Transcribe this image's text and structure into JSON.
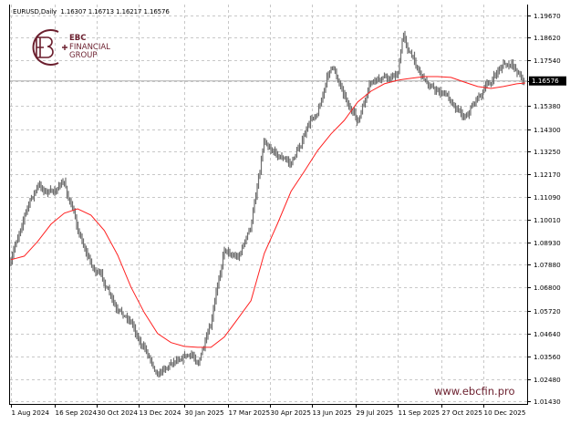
{
  "header": {
    "symbol": "EURUSD,Daily",
    "ohlc": "1.16307 1.16713 1.16217 1.16576"
  },
  "logo": {
    "line1": "EBC",
    "line2": "FINANCIAL",
    "line3": "GROUP"
  },
  "watermark": "www.ebcfin.pro",
  "colors": {
    "bars": "#6e6e6e",
    "ma": "#ff2020",
    "grid": "#c8c8c8",
    "brand": "#6b1f2e",
    "price_label_bg": "#000000"
  },
  "chart_data": {
    "type": "line",
    "subtype": "ohlc-bars-with-moving-average",
    "title": "EURUSD,Daily",
    "ylim": [
      1.0143,
      1.1967
    ],
    "grid": true,
    "current_price": "1.16576",
    "y_ticks": [
      "1.19670",
      "1.18620",
      "1.17540",
      "1.16576",
      "1.15380",
      "1.14300",
      "1.13250",
      "1.12170",
      "1.11090",
      "1.10010",
      "1.08930",
      "1.07880",
      "1.06800",
      "1.05720",
      "1.04640",
      "1.03560",
      "1.02480",
      "1.01430"
    ],
    "x_ticks": [
      {
        "date": "2024-08-01",
        "label": "1 Aug 2024"
      },
      {
        "date": "2024-09-16",
        "label": "16 Sep 2024"
      },
      {
        "date": "2024-10-30",
        "label": "30 Oct 2024"
      },
      {
        "date": "2024-12-13",
        "label": "13 Dec 2024"
      },
      {
        "date": "2025-01-30",
        "label": "30 Jan 2025"
      },
      {
        "date": "2025-03-17",
        "label": "17 Mar 2025"
      },
      {
        "date": "2025-04-30",
        "label": "30 Apr 2025"
      },
      {
        "date": "2025-06-13",
        "label": "13 Jun 2025"
      },
      {
        "date": "2025-07-29",
        "label": "29 Jul 2025"
      },
      {
        "date": "2025-09-11",
        "label": "11 Sep 2025"
      },
      {
        "date": "2025-10-27",
        "label": "27 Oct 2025"
      },
      {
        "date": "2025-12-10",
        "label": "10 Dec 2025"
      }
    ],
    "series": [
      {
        "kind": "price-close",
        "x": [
          "2024-08-01",
          "2024-08-15",
          "2024-08-29",
          "2024-09-12",
          "2024-09-26",
          "2024-10-10",
          "2024-10-24",
          "2024-11-07",
          "2024-11-21",
          "2024-12-05",
          "2024-12-19",
          "2025-01-02",
          "2025-01-16",
          "2025-01-30",
          "2025-02-13",
          "2025-02-27",
          "2025-03-13",
          "2025-03-27",
          "2025-04-10",
          "2025-04-24",
          "2025-05-08",
          "2025-05-22",
          "2025-06-05",
          "2025-06-19",
          "2025-07-03",
          "2025-07-17",
          "2025-07-31",
          "2025-08-14",
          "2025-08-28",
          "2025-09-11",
          "2025-09-17",
          "2025-09-25",
          "2025-10-09",
          "2025-10-23",
          "2025-11-06",
          "2025-11-20",
          "2025-12-04",
          "2025-12-18",
          "2025-12-31",
          "2026-01-14",
          "2026-01-23"
        ],
        "y": [
          1.079,
          1.1036,
          1.1157,
          1.1127,
          1.117,
          1.0963,
          1.0799,
          1.0704,
          1.054,
          1.0523,
          1.0394,
          1.0295,
          1.0338,
          1.0385,
          1.0338,
          1.048,
          1.0868,
          1.0834,
          1.0963,
          1.1394,
          1.1329,
          1.1265,
          1.1402,
          1.1523,
          1.173,
          1.1609,
          1.1458,
          1.1631,
          1.1661,
          1.1695,
          1.1876,
          1.1782,
          1.1674,
          1.1609,
          1.1575,
          1.1502,
          1.1588,
          1.1652,
          1.1739,
          1.1704,
          1.16576
        ]
      },
      {
        "kind": "moving-average",
        "x": [
          "2024-08-01",
          "2024-08-15",
          "2024-08-29",
          "2024-09-12",
          "2024-09-26",
          "2024-10-10",
          "2024-10-24",
          "2024-11-07",
          "2024-11-21",
          "2024-12-05",
          "2024-12-19",
          "2025-01-02",
          "2025-01-16",
          "2025-01-30",
          "2025-02-13",
          "2025-02-27",
          "2025-03-13",
          "2025-03-27",
          "2025-04-10",
          "2025-04-24",
          "2025-05-08",
          "2025-05-22",
          "2025-06-05",
          "2025-06-19",
          "2025-07-03",
          "2025-07-17",
          "2025-07-31",
          "2025-08-14",
          "2025-08-28",
          "2025-09-11",
          "2025-09-17",
          "2025-09-25",
          "2025-10-09",
          "2025-10-23",
          "2025-11-06",
          "2025-11-20",
          "2025-12-04",
          "2025-12-18",
          "2025-12-31",
          "2026-01-14",
          "2026-01-23"
        ],
        "y": [
          1.0812,
          1.0829,
          1.0898,
          1.098,
          1.1032,
          1.1053,
          1.1023,
          1.095,
          1.0834,
          1.0683,
          1.0562,
          1.0463,
          1.042,
          1.0402,
          1.0398,
          1.0398,
          1.0446,
          1.0532,
          1.0618,
          1.0842,
          1.0984,
          1.1135,
          1.123,
          1.1329,
          1.1407,
          1.1471,
          1.1558,
          1.1609,
          1.1644,
          1.1661,
          1.1665,
          1.167,
          1.1678,
          1.1678,
          1.1674,
          1.1652,
          1.1631,
          1.1622,
          1.1631,
          1.1644,
          1.1648
        ]
      }
    ]
  }
}
